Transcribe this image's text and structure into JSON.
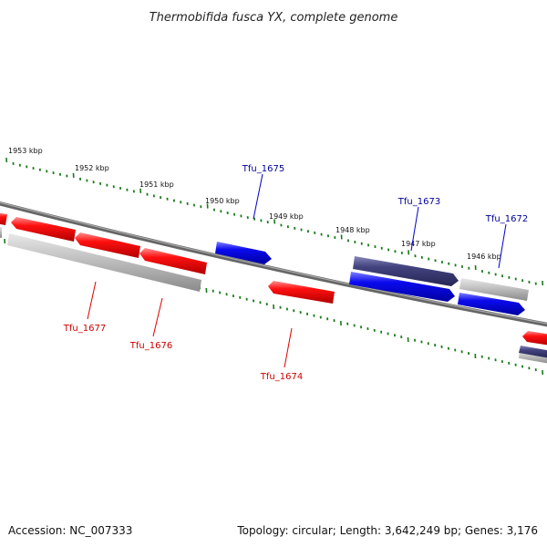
{
  "title": "Thermobifida fusca YX, complete genome",
  "footer": {
    "accession": "Accession: NC_007333",
    "summary": "Topology: circular; Length: 3,642,249 bp; Genes: 3,176"
  },
  "scale_labels": [
    "1953 kbp",
    "1952 kbp",
    "1951 kbp",
    "1950 kbp",
    "1949 kbp",
    "1948 kbp",
    "1947 kbp",
    "1946 kbp"
  ],
  "gene_labels": [
    {
      "name": "Tfu_1675",
      "strand": "forward"
    },
    {
      "name": "Tfu_1673",
      "strand": "forward"
    },
    {
      "name": "Tfu_1672",
      "strand": "forward"
    },
    {
      "name": "Tfu_1677",
      "strand": "reverse"
    },
    {
      "name": "Tfu_1676",
      "strand": "reverse"
    },
    {
      "name": "Tfu_1674",
      "strand": "reverse"
    }
  ],
  "colors": {
    "forward": "#0000ee",
    "forward_dark": "#3a3a7a",
    "reverse": "#ee0000",
    "reverse_label": "#cc0000",
    "forward_label": "#000099",
    "other": "#b0b0b0",
    "backbone": "#777777",
    "tick": "#1a7a1a"
  }
}
